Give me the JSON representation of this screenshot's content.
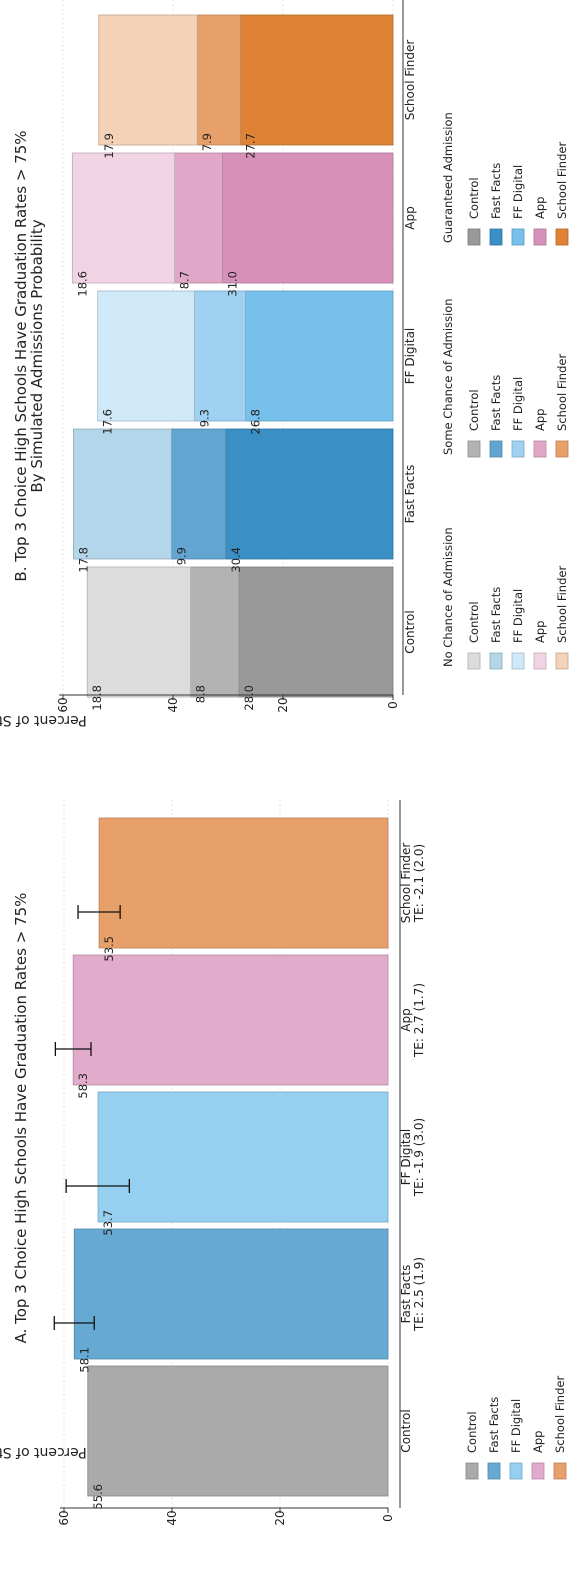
{
  "chart_data": [
    {
      "type": "bar",
      "title": "A. Top 3 Choice High Schools Have Graduation Rates > 75%",
      "ylabel": "Percent of Students",
      "ylim": [
        0,
        60
      ],
      "yticks": [
        0,
        20,
        40,
        60
      ],
      "grid": true,
      "categories": [
        "Control",
        "Fast Facts",
        "FF Digital",
        "App",
        "School Finder"
      ],
      "category_sublabels": [
        "",
        "TE: 2.5 (1.9)",
        "TE: -1.9 (3.0)",
        "TE: 2.7 (1.7)",
        "TE: -2.1 (2.0)"
      ],
      "values": [
        55.6,
        58.1,
        53.7,
        58.3,
        53.5
      ],
      "value_labels": [
        "55.6",
        "58.1",
        "53.7",
        "58.3",
        "53.5"
      ],
      "error_low": [
        null,
        54.4,
        47.9,
        55.0,
        49.6
      ],
      "error_high": [
        null,
        61.8,
        59.6,
        61.6,
        57.4
      ],
      "colors": [
        "#aaaaaa",
        "#66a9d2",
        "#95d0f1",
        "#e1abcb",
        "#e8a06b"
      ],
      "legend": {
        "placement": "bottom",
        "items": [
          {
            "label": "Control",
            "color": "#aaaaaa"
          },
          {
            "label": "Fast Facts",
            "color": "#66a9d2"
          },
          {
            "label": "FF Digital",
            "color": "#95d0f1"
          },
          {
            "label": "App",
            "color": "#e1abcb"
          },
          {
            "label": "School Finder",
            "color": "#e8a06b"
          }
        ]
      }
    },
    {
      "type": "bar",
      "stacked": true,
      "title": "B. Top 3 Choice High Schools Have Graduation Rates > 75%",
      "subtitle": "By Simulated Admissions Probability",
      "ylabel": "Percent of Students",
      "ylim": [
        0,
        60
      ],
      "yticks": [
        0,
        20,
        40,
        60
      ],
      "grid": true,
      "categories": [
        "Control",
        "Fast Facts",
        "FF Digital",
        "App",
        "School Finder"
      ],
      "series": [
        {
          "name": "Guaranteed Admission",
          "values": [
            28.0,
            30.4,
            26.8,
            31.0,
            27.7
          ],
          "labels": [
            "28.0",
            "30.4",
            "26.8",
            "31.0",
            "27.7"
          ],
          "colors": [
            "#999999",
            "#3a8fc5",
            "#76c0eb",
            "#d691b9",
            "#df8235"
          ]
        },
        {
          "name": "Some Chance of Admission",
          "values": [
            8.8,
            9.9,
            9.3,
            8.7,
            7.9
          ],
          "labels": [
            "8.8",
            "9.9",
            "9.3",
            "8.7",
            "7.9"
          ],
          "colors": [
            "#b3b3b3",
            "#62a5d1",
            "#9ed1f2",
            "#e0a7c8",
            "#e8a06b"
          ]
        },
        {
          "name": "No Chance of Admission",
          "values": [
            18.8,
            17.8,
            17.6,
            18.6,
            17.9
          ],
          "labels": [
            "18.8",
            "17.8",
            "17.6",
            "18.6",
            "17.9"
          ],
          "colors": [
            "#dcdcdc",
            "#b4d6ea",
            "#cfe9f8",
            "#f1d4e4",
            "#f3d2b7"
          ]
        }
      ],
      "legend": {
        "placement": "bottom",
        "columns": [
          {
            "title": "No Chance of Admission",
            "items": [
              {
                "label": "Control",
                "color": "#dcdcdc"
              },
              {
                "label": "Fast Facts",
                "color": "#b4d6ea"
              },
              {
                "label": "FF Digital",
                "color": "#cfe9f8"
              },
              {
                "label": "App",
                "color": "#f1d4e4"
              },
              {
                "label": "School Finder",
                "color": "#f3d2b7"
              }
            ]
          },
          {
            "title": "Some Chance of Admission",
            "items": [
              {
                "label": "Control",
                "color": "#b3b3b3"
              },
              {
                "label": "Fast Facts",
                "color": "#62a5d1"
              },
              {
                "label": "FF Digital",
                "color": "#9ed1f2"
              },
              {
                "label": "App",
                "color": "#e0a7c8"
              },
              {
                "label": "School Finder",
                "color": "#e8a06b"
              }
            ]
          },
          {
            "title": "Guaranteed Admission",
            "items": [
              {
                "label": "Control",
                "color": "#999999"
              },
              {
                "label": "Fast Facts",
                "color": "#3a8fc5"
              },
              {
                "label": "FF Digital",
                "color": "#76c0eb"
              },
              {
                "label": "App",
                "color": "#d691b9"
              },
              {
                "label": "School Finder",
                "color": "#df8235"
              }
            ]
          }
        ]
      }
    }
  ]
}
